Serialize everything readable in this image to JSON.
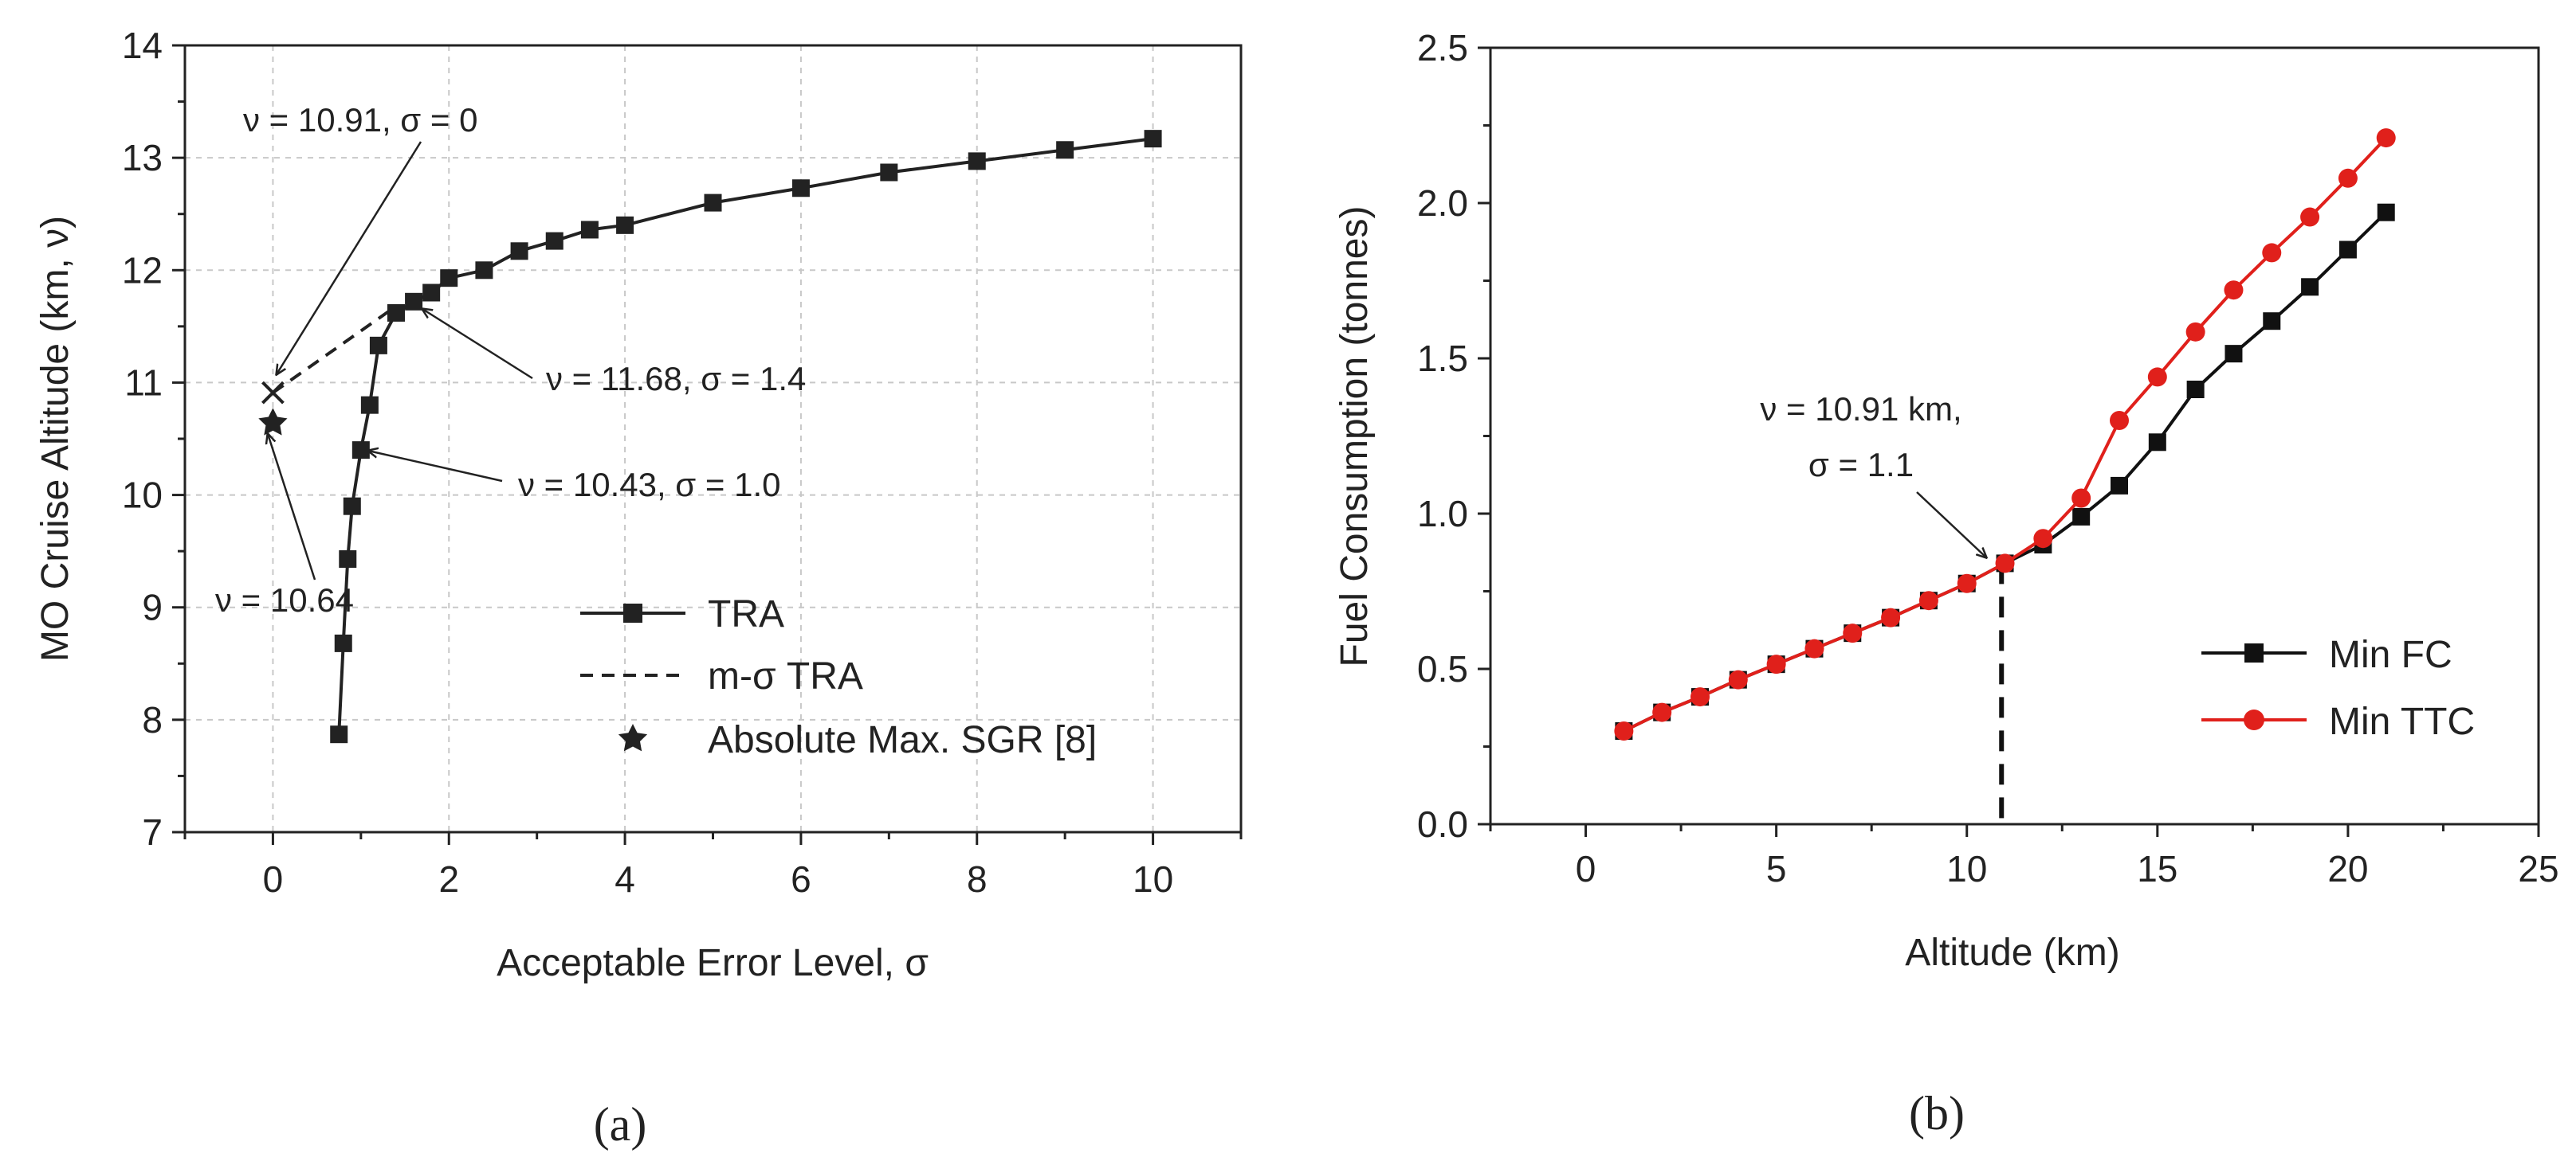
{
  "chart_data": [
    {
      "type": "line",
      "panel_label": "(a)",
      "xlabel": "Acceptable Error Level, σ",
      "ylabel": "MO Cruise Altitude (km, ν)",
      "xlim": [
        -1,
        11
      ],
      "ylim": [
        7,
        14
      ],
      "xticks": [
        0,
        2,
        4,
        6,
        8,
        10
      ],
      "yticks": [
        7,
        8,
        9,
        10,
        11,
        12,
        13,
        14
      ],
      "grid": true,
      "series": [
        {
          "name": "TRA",
          "style": "solid-square",
          "points": [
            [
              0.75,
              7.87
            ],
            [
              0.8,
              8.68
            ],
            [
              0.85,
              9.43
            ],
            [
              0.9,
              9.9
            ],
            [
              1.0,
              10.4
            ],
            [
              1.1,
              10.8
            ],
            [
              1.2,
              11.33
            ],
            [
              1.4,
              11.62
            ],
            [
              1.6,
              11.72
            ],
            [
              1.8,
              11.8
            ],
            [
              2.0,
              11.93
            ],
            [
              2.4,
              12.0
            ],
            [
              2.8,
              12.17
            ],
            [
              3.2,
              12.26
            ],
            [
              3.6,
              12.36
            ],
            [
              4.0,
              12.4
            ],
            [
              5.0,
              12.6
            ],
            [
              6.0,
              12.73
            ],
            [
              7.0,
              12.87
            ],
            [
              8.0,
              12.97
            ],
            [
              9.0,
              13.07
            ],
            [
              10.0,
              13.17
            ]
          ]
        },
        {
          "name": "m-σ TRA",
          "style": "dashed",
          "points": [
            [
              0,
              10.91
            ],
            [
              1.4,
              11.68
            ]
          ]
        },
        {
          "name": "Absolute Max. SGR [8]",
          "style": "star",
          "points": [
            [
              0,
              10.64
            ]
          ]
        }
      ],
      "cross_marker": [
        0,
        10.91
      ],
      "annotations": [
        {
          "text": "ν = 10.91, σ = 0",
          "target": [
            0,
            10.91
          ]
        },
        {
          "text": "ν =  11.68, σ = 1.4",
          "target": [
            1.7,
            11.68
          ]
        },
        {
          "text": "ν =  10.43, σ = 1.0",
          "target": [
            1.1,
            10.43
          ]
        },
        {
          "text": "ν = 10.64",
          "target": [
            0,
            10.64
          ]
        }
      ]
    },
    {
      "type": "line",
      "panel_label": "(b)",
      "xlabel": "Altitude (km)",
      "ylabel": "Fuel Consumption (tonnes)",
      "xlim": [
        -2.5,
        25
      ],
      "ylim": [
        0,
        2.5
      ],
      "xticks": [
        0,
        5,
        10,
        15,
        20,
        25
      ],
      "yticks": [
        0.0,
        0.5,
        1.0,
        1.5,
        2.0,
        2.5
      ],
      "grid": false,
      "x": [
        1,
        2,
        3,
        4,
        5,
        6,
        7,
        8,
        9,
        10,
        11,
        12,
        13,
        14,
        15,
        16,
        17,
        18,
        19,
        20,
        21
      ],
      "series": [
        {
          "name": "Min FC",
          "color": "#111111",
          "marker": "square",
          "values": [
            0.3,
            0.36,
            0.41,
            0.465,
            0.515,
            0.565,
            0.615,
            0.665,
            0.72,
            0.775,
            0.84,
            0.9,
            0.99,
            1.09,
            1.23,
            1.4,
            1.515,
            1.62,
            1.73,
            1.85,
            1.97
          ]
        },
        {
          "name": "Min TTC",
          "color": "#e0201b",
          "marker": "circle",
          "values": [
            0.3,
            0.36,
            0.41,
            0.465,
            0.515,
            0.565,
            0.615,
            0.665,
            0.72,
            0.775,
            0.84,
            0.92,
            1.05,
            1.3,
            1.44,
            1.585,
            1.72,
            1.84,
            1.955,
            2.08,
            2.21
          ]
        }
      ],
      "vline_x": 10.91,
      "annotation": {
        "line1": "ν = 10.91 km,",
        "line2": "σ = 1.1",
        "target": [
          10.91,
          0.84
        ]
      }
    }
  ]
}
